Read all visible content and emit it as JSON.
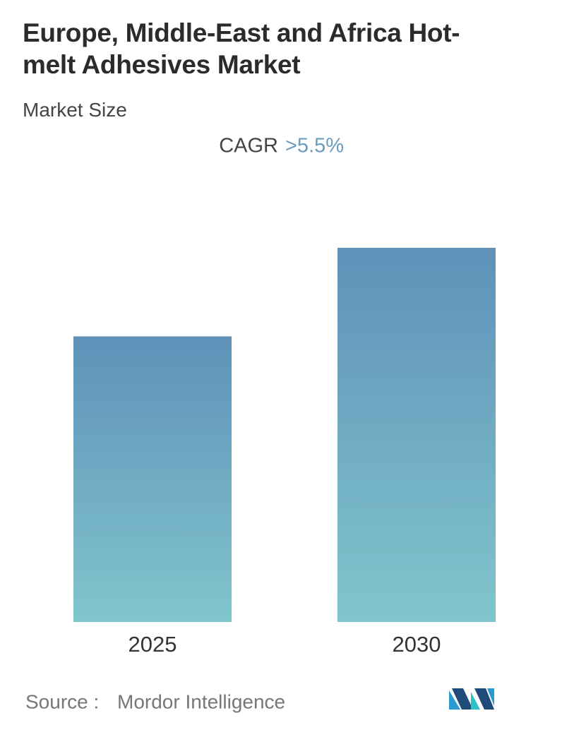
{
  "chart_data": {
    "type": "bar",
    "title": "Europe, Middle-East and Africa Hot-melt Adhesives Market",
    "subtitle": "Market Size",
    "cagr_label": "CAGR",
    "cagr_value": ">5.5%",
    "categories": [
      "2025",
      "2030"
    ],
    "values": [
      1.0,
      1.31
    ],
    "color_top": "#5f91b9",
    "color_bottom": "#80c5cc",
    "source_label": "Source :",
    "source": "Mordor Intelligence"
  }
}
